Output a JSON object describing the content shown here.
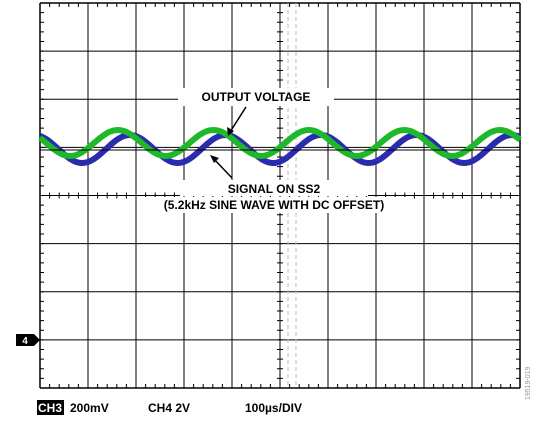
{
  "annotations": {
    "output": "OUTPUT VOLTAGE",
    "signal_1": "SIGNAL ON SS2",
    "signal_2": "(5.2kHz SINE WAVE WITH DC OFFSET)"
  },
  "marker": "4",
  "status": {
    "channel": "CH3",
    "ch3_scale": "200mV",
    "ch4_scale": "CH4 2V",
    "timebase": "100µs/DIV"
  },
  "figure_id": "19519-019"
}
